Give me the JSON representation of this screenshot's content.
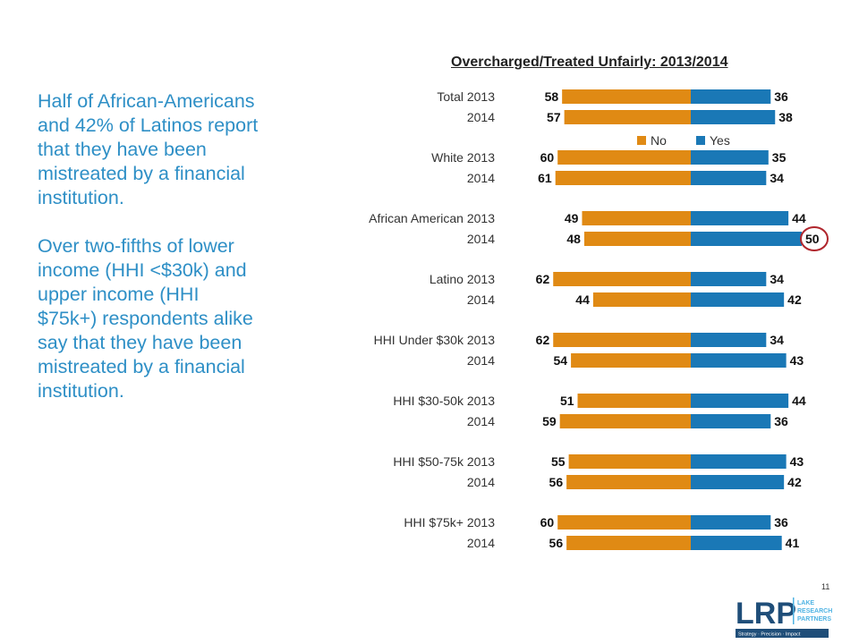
{
  "narrative": {
    "paragraph1": "Half of African-Americans and 42% of Latinos report that they have been mistreated by a financial institution.",
    "paragraph2": "Over two-fifths of lower income (HHI <$30k) and upper income (HHI $75k+) respondents alike say that they have been mistreated by a financial institution."
  },
  "page_number": "11",
  "logo": {
    "letters": "LRP",
    "line1": "LAKE",
    "line2": "RESEARCH",
    "line3": "PARTNERS",
    "tagline": "Strategy · Precision · Impact"
  },
  "colors": {
    "no": "#e08a14",
    "yes": "#1a78b6",
    "narrative": "#2e8fc6",
    "highlight": "#b0262d"
  },
  "chart_data": {
    "type": "bar",
    "orientation": "diverging-horizontal",
    "title": "Overcharged/Treated Unfairly: 2013/2014",
    "legend": {
      "position": "upper-middle",
      "entries": [
        "No",
        "Yes"
      ]
    },
    "groups": [
      {
        "name": "Total",
        "rows": [
          {
            "year": "2013",
            "no": 58,
            "yes": 36
          },
          {
            "year": "2014",
            "no": 57,
            "yes": 38
          }
        ]
      },
      {
        "name": "White",
        "rows": [
          {
            "year": "2013",
            "no": 60,
            "yes": 35
          },
          {
            "year": "2014",
            "no": 61,
            "yes": 34
          }
        ]
      },
      {
        "name": "African American",
        "rows": [
          {
            "year": "2013",
            "no": 49,
            "yes": 44
          },
          {
            "year": "2014",
            "no": 48,
            "yes": 50,
            "highlight": true
          }
        ]
      },
      {
        "name": "Latino",
        "rows": [
          {
            "year": "2013",
            "no": 62,
            "yes": 34
          },
          {
            "year": "2014",
            "no": 44,
            "yes": 42
          }
        ]
      },
      {
        "name": "HHI Under $30k",
        "rows": [
          {
            "year": "2013",
            "no": 62,
            "yes": 34
          },
          {
            "year": "2014",
            "no": 54,
            "yes": 43
          }
        ]
      },
      {
        "name": "HHI $30-50k",
        "rows": [
          {
            "year": "2013",
            "no": 51,
            "yes": 44
          },
          {
            "year": "2014",
            "no": 59,
            "yes": 36
          }
        ]
      },
      {
        "name": "HHI $50-75k",
        "rows": [
          {
            "year": "2013",
            "no": 55,
            "yes": 43
          },
          {
            "year": "2014",
            "no": 56,
            "yes": 42
          }
        ]
      },
      {
        "name": "HHI $75k+",
        "rows": [
          {
            "year": "2013",
            "no": 60,
            "yes": 36
          },
          {
            "year": "2014",
            "no": 56,
            "yes": 41
          }
        ]
      }
    ]
  }
}
